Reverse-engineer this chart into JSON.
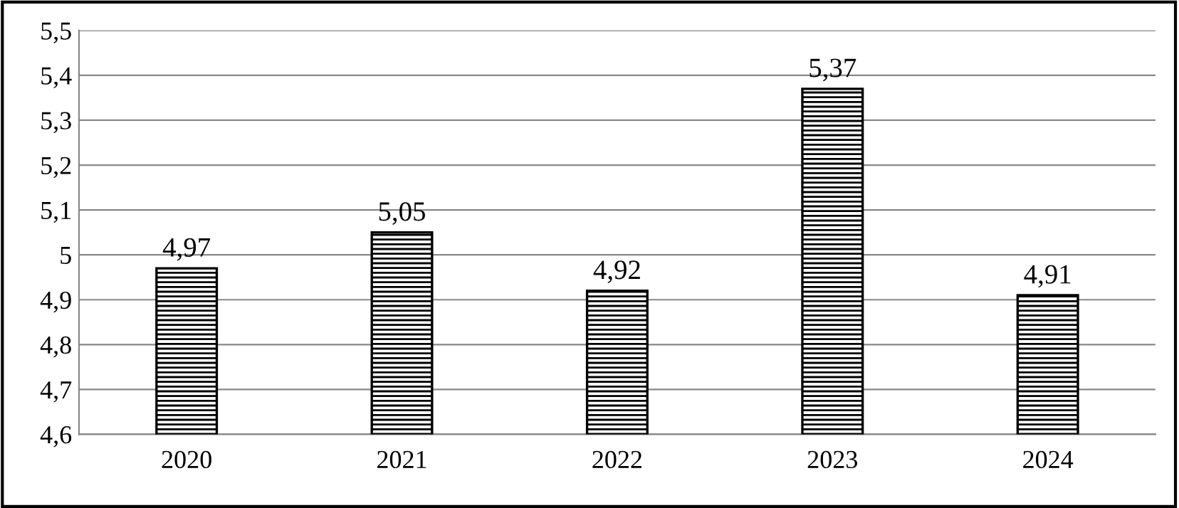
{
  "chart_data": {
    "type": "bar",
    "categories": [
      "2020",
      "2021",
      "2022",
      "2023",
      "2024"
    ],
    "values": [
      4.97,
      5.05,
      4.92,
      5.37,
      4.91
    ],
    "value_labels": [
      "4,97",
      "5,05",
      "4,92",
      "5,37",
      "4,91"
    ],
    "color": "#000000",
    "ylim": [
      4.6,
      5.5
    ],
    "yticks": [
      {
        "value": 4.6,
        "label": "4,6"
      },
      {
        "value": 4.7,
        "label": "4,7"
      },
      {
        "value": 4.8,
        "label": "4,8"
      },
      {
        "value": 4.9,
        "label": "4,9"
      },
      5,
      {
        "value": 5.1,
        "label": "5,1"
      },
      {
        "value": 5.2,
        "label": "5,2"
      },
      {
        "value": 5.3,
        "label": "5,3"
      },
      {
        "value": 5.4,
        "label": "5,4"
      },
      {
        "value": 5.5,
        "label": "5,5"
      }
    ],
    "grid": "y"
  }
}
